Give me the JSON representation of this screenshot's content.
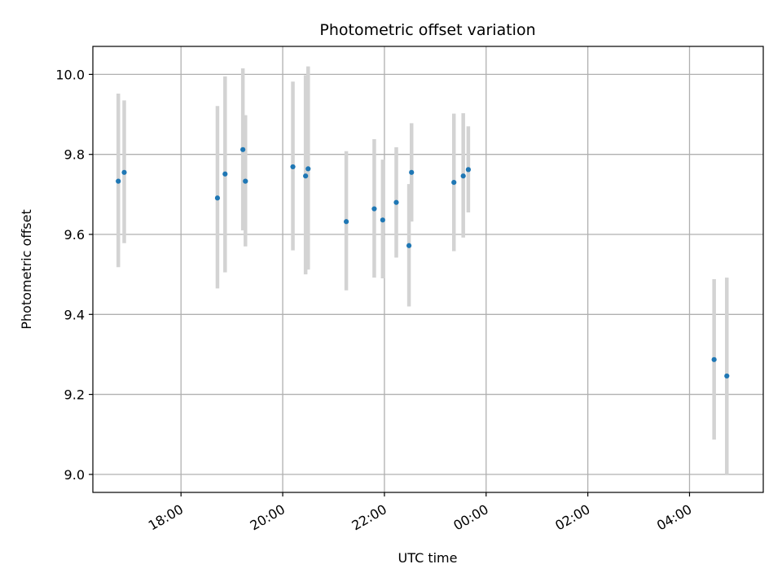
{
  "chart_data": {
    "type": "scatter",
    "title": "Photometric offset variation",
    "xlabel": "UTC time",
    "ylabel": "Photometric offset",
    "x_tick_labels": [
      "18:00",
      "20:00",
      "22:00",
      "00:00",
      "02:00",
      "04:00"
    ],
    "x_ticks": [
      "18:00",
      "20:00",
      "22:00",
      "00:00",
      "02:00",
      "04:00"
    ],
    "xlim": [
      "16:16",
      "05:27"
    ],
    "y_ticks": [
      9.0,
      9.2,
      9.4,
      9.6,
      9.8,
      10.0
    ],
    "y_tick_labels": [
      "9.0",
      "9.2",
      "9.4",
      "9.6",
      "9.8",
      "10.0"
    ],
    "ylim": [
      8.955,
      10.07
    ],
    "grid": true,
    "errorbar_color": "#d3d3d3",
    "point_color": "#1f77b4",
    "series": [
      {
        "points": [
          {
            "x": "16:46",
            "y": 9.733,
            "ylo": 9.518,
            "yhi": 9.952
          },
          {
            "x": "16:53",
            "y": 9.755,
            "ylo": 9.578,
            "yhi": 9.935
          },
          {
            "x": "18:43",
            "y": 9.691,
            "ylo": 9.465,
            "yhi": 9.921
          },
          {
            "x": "18:52",
            "y": 9.751,
            "ylo": 9.505,
            "yhi": 9.995
          },
          {
            "x": "19:13",
            "y": 9.812,
            "ylo": 9.61,
            "yhi": 10.015
          },
          {
            "x": "19:16",
            "y": 9.733,
            "ylo": 9.57,
            "yhi": 9.898
          },
          {
            "x": "20:12",
            "y": 9.769,
            "ylo": 9.56,
            "yhi": 9.982
          },
          {
            "x": "20:27",
            "y": 9.746,
            "ylo": 9.5,
            "yhi": 9.998
          },
          {
            "x": "20:30",
            "y": 9.764,
            "ylo": 9.512,
            "yhi": 10.02
          },
          {
            "x": "21:15",
            "y": 9.632,
            "ylo": 9.46,
            "yhi": 9.808
          },
          {
            "x": "21:48",
            "y": 9.664,
            "ylo": 9.492,
            "yhi": 9.838
          },
          {
            "x": "21:58",
            "y": 9.636,
            "ylo": 9.49,
            "yhi": 9.787
          },
          {
            "x": "22:14",
            "y": 9.68,
            "ylo": 9.542,
            "yhi": 9.818
          },
          {
            "x": "22:29",
            "y": 9.572,
            "ylo": 9.42,
            "yhi": 9.726
          },
          {
            "x": "22:32",
            "y": 9.755,
            "ylo": 9.632,
            "yhi": 9.878
          },
          {
            "x": "23:22",
            "y": 9.73,
            "ylo": 9.558,
            "yhi": 9.902
          },
          {
            "x": "23:33",
            "y": 9.746,
            "ylo": 9.592,
            "yhi": 9.903
          },
          {
            "x": "23:39",
            "y": 9.762,
            "ylo": 9.655,
            "yhi": 9.87
          },
          {
            "x": "04:29",
            "y": 9.287,
            "ylo": 9.087,
            "yhi": 9.488
          },
          {
            "x": "04:44",
            "y": 9.246,
            "ylo": 9.0,
            "yhi": 9.492
          }
        ]
      }
    ]
  }
}
